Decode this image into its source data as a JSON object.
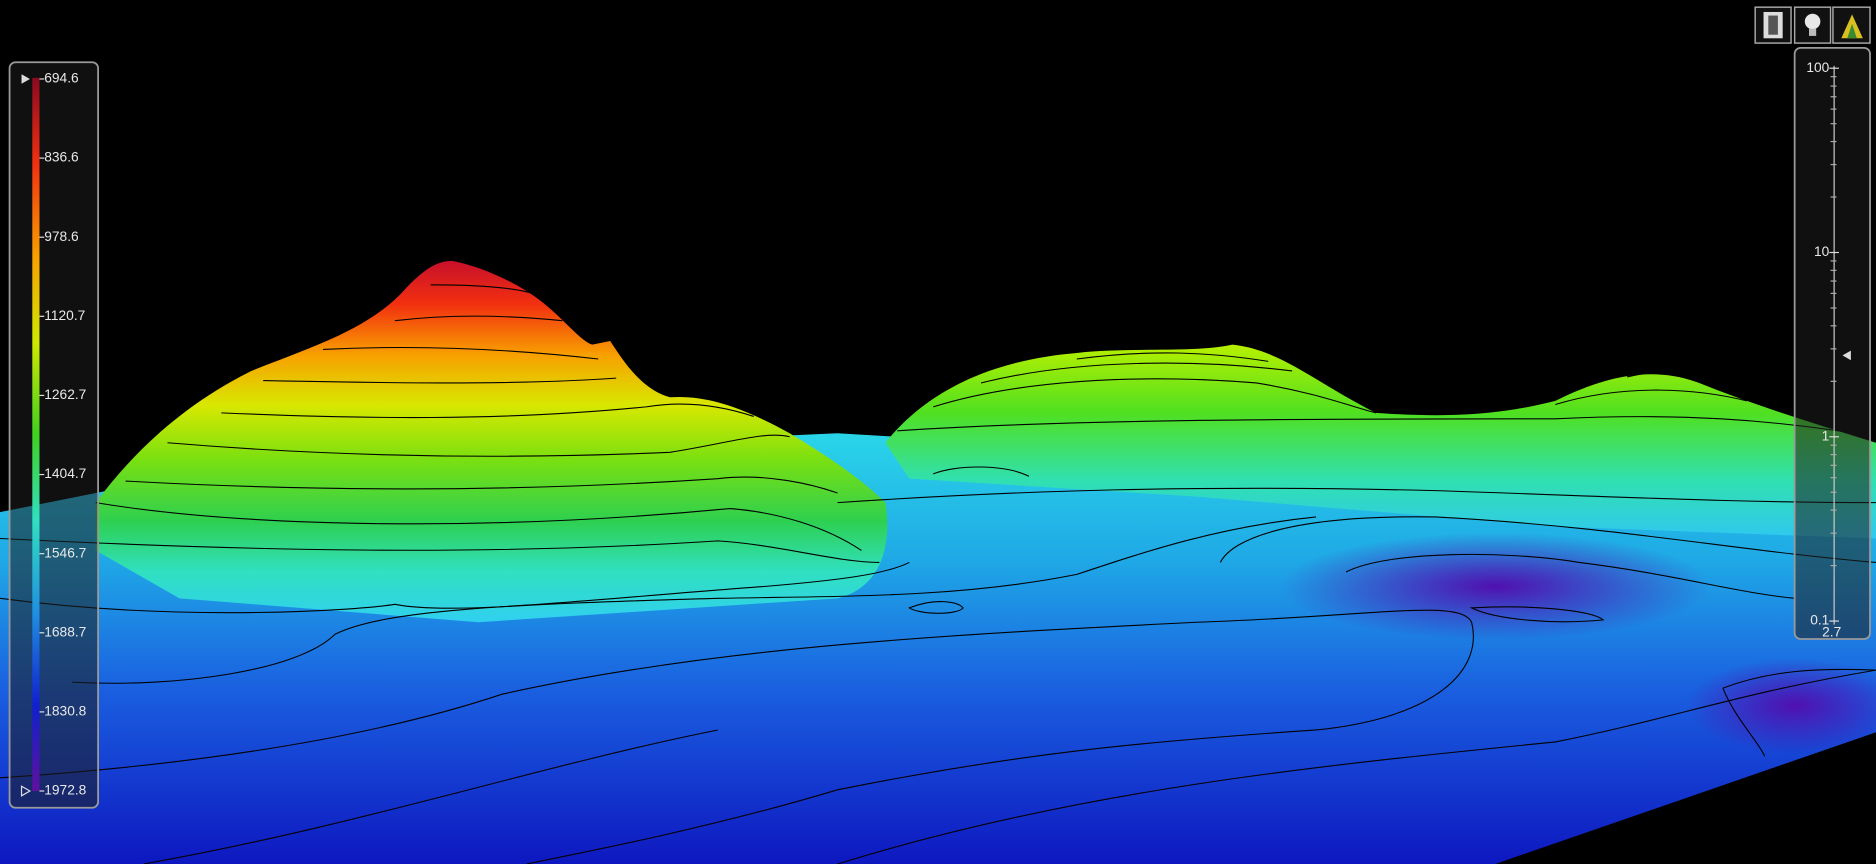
{
  "colorbar": {
    "labels": [
      "694.6",
      "836.6",
      "978.6",
      "1120.7",
      "1262.7",
      "1404.7",
      "1546.7",
      "1688.7",
      "1830.8",
      "1972.8"
    ]
  },
  "exaggeration": {
    "labels": [
      "100",
      "10",
      "1",
      "0.1"
    ],
    "current": "2.7"
  }
}
